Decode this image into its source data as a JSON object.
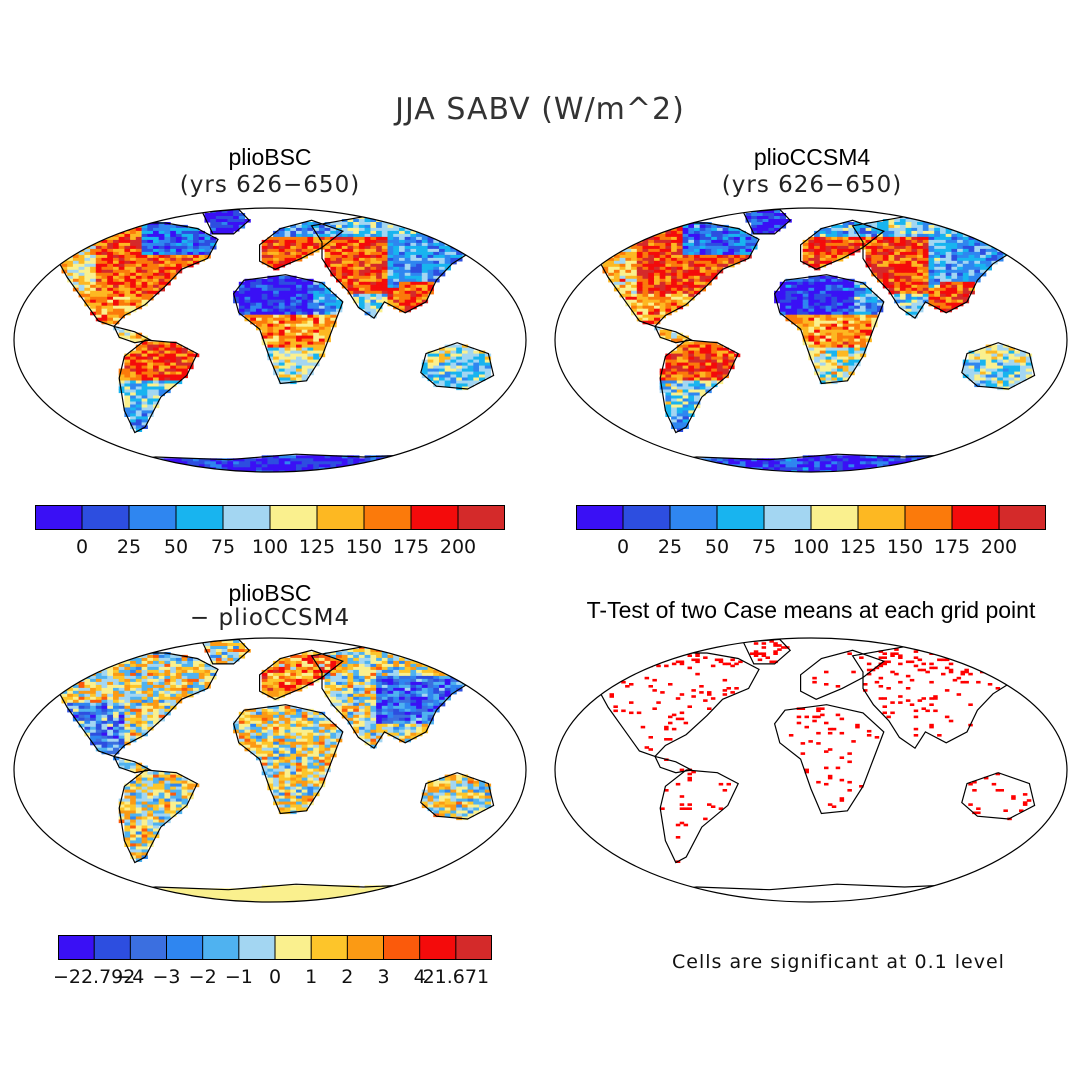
{
  "figure": {
    "title": "JJA SABV (W/m^2)"
  },
  "panels": [
    {
      "id": "p1",
      "title": "plioBSC",
      "subtitle": "(yrs 626−650)",
      "kind": "field"
    },
    {
      "id": "p2",
      "title": "plioCCSM4",
      "subtitle": "(yrs 626−650)",
      "kind": "field"
    },
    {
      "id": "p3",
      "title": "plioBSC",
      "subtitle": "− plioCCSM4",
      "kind": "diff"
    },
    {
      "id": "p4",
      "title": "T-Test of two Case means at each grid point",
      "subtitle": "",
      "kind": "ttest"
    }
  ],
  "colorbars": {
    "field": {
      "colors": [
        "#3a10f5",
        "#2d4ee0",
        "#2f86f0",
        "#18b4ef",
        "#a3d6f2",
        "#faf08e",
        "#fdb822",
        "#fb7a0b",
        "#f40b0b",
        "#d42a2a"
      ],
      "labels": [
        "0",
        "25",
        "50",
        "75",
        "100",
        "125",
        "150",
        "175",
        "200"
      ]
    },
    "diff": {
      "colors": [
        "#3a10f5",
        "#2d4ee0",
        "#3b6fe0",
        "#2f86f0",
        "#4fb2f0",
        "#a3d6f2",
        "#faf08e",
        "#fdc52a",
        "#fb9a14",
        "#fb5a0b",
        "#f40b0b",
        "#d42a2a"
      ],
      "labels": [
        "−22.792",
        "−4",
        "−3",
        "−2",
        "−1",
        "0",
        "1",
        "2",
        "3",
        "4",
        "21.671"
      ]
    }
  },
  "ttest": {
    "note": "Cells are significant at 0.1 level",
    "dot_color": "#ff0000"
  }
}
